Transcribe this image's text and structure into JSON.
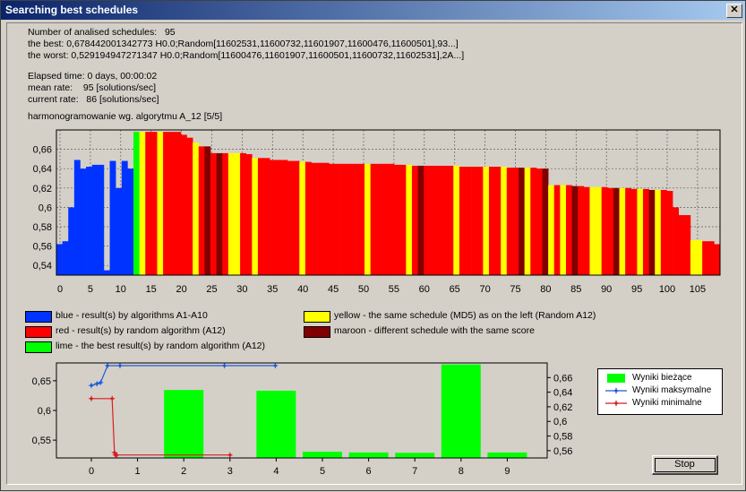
{
  "window": {
    "title": "Searching best schedules",
    "close_label": "✕"
  },
  "info": {
    "analised_label": "Number of analised schedules:",
    "analised_value": "95",
    "best": "the best: 0,678442001342773 H0.0;Random[11602531,11600732,11601907,11600476,11600501],93...]",
    "worst": "the worst: 0,529194947271347 H0.0;Random[11600476,11601907,11600501,11600732,11602531],2A...]",
    "elapsed": "Elapsed time: 0 days, 00:00:02",
    "mean_label": "mean rate:",
    "mean_value": "95 [solutions/sec]",
    "current_label": "current rate:",
    "current_value": "86 [solutions/sec]",
    "heading": "harmonogramowanie wg. algorytmu A_12 [5/5]"
  },
  "colors": {
    "blue": "#0033ff",
    "red": "#ff0000",
    "lime": "#00ff00",
    "yellow": "#ffff00",
    "maroon": "#800000"
  },
  "key": {
    "blue": "blue - result(s) by algorithms A1-A10",
    "red": "red - result(s) by random algorithm (A12)",
    "lime": "lime - the best result(s) by random algorithm (A12)",
    "yellow": "yellow - the same schedule (MD5) as on the left (Random A12)",
    "maroon": "maroon - different schedule with the same score"
  },
  "chart_data": [
    {
      "type": "bar",
      "ylim": [
        0.53,
        0.68
      ],
      "yticks": [
        "0,54",
        "0,56",
        "0,58",
        "0,6",
        "0,62",
        "0,64",
        "0,66"
      ],
      "xticks": [
        "0",
        "5",
        "10",
        "15",
        "20",
        "25",
        "30",
        "35",
        "40",
        "45",
        "50",
        "55",
        "60",
        "65",
        "70",
        "75",
        "80",
        "85",
        "90",
        "95",
        "100",
        "105"
      ],
      "grid": true,
      "values": [
        0.562,
        0.565,
        0.6,
        0.649,
        0.64,
        0.642,
        0.644,
        0.644,
        0.535,
        0.648,
        0.62,
        0.648,
        0.64,
        0.678,
        0.678,
        0.678,
        0.678,
        0.678,
        0.678,
        0.678,
        0.678,
        0.675,
        0.672,
        0.667,
        0.663,
        0.663,
        0.656,
        0.656,
        0.656,
        0.656,
        0.656,
        0.656,
        0.655,
        0.651,
        0.651,
        0.651,
        0.649,
        0.649,
        0.649,
        0.648,
        0.648,
        0.647,
        0.647,
        0.646,
        0.646,
        0.646,
        0.645,
        0.645,
        0.645,
        0.645,
        0.645,
        0.645,
        0.645,
        0.645,
        0.645,
        0.645,
        0.645,
        0.644,
        0.644,
        0.644,
        0.643,
        0.643,
        0.643,
        0.643,
        0.643,
        0.643,
        0.643,
        0.643,
        0.642,
        0.642,
        0.642,
        0.642,
        0.642,
        0.642,
        0.642,
        0.642,
        0.641,
        0.641,
        0.641,
        0.641,
        0.641,
        0.64,
        0.64,
        0.623,
        0.623,
        0.623,
        0.623,
        0.622,
        0.622,
        0.621,
        0.621,
        0.621,
        0.621,
        0.62,
        0.62,
        0.62,
        0.62,
        0.619,
        0.619,
        0.619,
        0.618,
        0.618,
        0.618,
        0.617,
        0.6,
        0.592,
        0.592,
        0.566,
        0.566,
        0.565,
        0.565,
        0.562
      ],
      "colors": [
        "blue",
        "blue",
        "blue",
        "blue",
        "blue",
        "blue",
        "blue",
        "blue",
        "blue",
        "blue",
        "blue",
        "blue",
        "blue",
        "lime",
        "yellow",
        "red",
        "red",
        "yellow",
        "red",
        "red",
        "red",
        "red",
        "red",
        "yellow",
        "red",
        "maroon",
        "red",
        "maroon",
        "red",
        "yellow",
        "yellow",
        "red",
        "red",
        "yellow",
        "red",
        "red",
        "red",
        "red",
        "red",
        "red",
        "red",
        "yellow",
        "red",
        "red",
        "red",
        "red",
        "red",
        "red",
        "red",
        "red",
        "red",
        "red",
        "yellow",
        "red",
        "red",
        "red",
        "red",
        "red",
        "red",
        "yellow",
        "red",
        "maroon",
        "red",
        "red",
        "red",
        "red",
        "red",
        "yellow",
        "red",
        "red",
        "red",
        "red",
        "yellow",
        "red",
        "red",
        "yellow",
        "red",
        "red",
        "maroon",
        "yellow",
        "red",
        "red",
        "maroon",
        "yellow",
        "red",
        "yellow",
        "red",
        "maroon",
        "red",
        "red",
        "yellow",
        "yellow",
        "red",
        "red",
        "maroon",
        "yellow",
        "red",
        "red",
        "yellow",
        "red",
        "maroon",
        "yellow",
        "red",
        "red",
        "red",
        "red",
        "red",
        "yellow",
        "yellow",
        "red",
        "red",
        "red",
        "red",
        "red"
      ]
    },
    {
      "type": "bar",
      "series": [
        {
          "name": "Wyniki bieżące",
          "categories": [
            "0",
            "1",
            "2",
            "3",
            "4",
            "5",
            "6",
            "7",
            "8",
            "9"
          ],
          "values": [
            null,
            null,
            0.643,
            null,
            0.642,
            0.5585,
            0.5575,
            0.557,
            0.678,
            0.5575
          ]
        },
        {
          "name": "Wyniki maksymalne",
          "type": "line",
          "x": [
            0,
            0.12,
            0.2,
            0.35,
            0.62,
            2.88,
            3.98
          ],
          "y": [
            0.642,
            0.645,
            0.647,
            0.678,
            0.678,
            0.678,
            0.678
          ]
        },
        {
          "name": "Wyniki minimalne",
          "type": "line",
          "x": [
            0,
            0.45,
            0.5,
            0.52,
            0.55,
            3.0
          ],
          "y": [
            0.62,
            0.62,
            0.529,
            0.525,
            0.525,
            0.525
          ]
        }
      ],
      "y_left_ticks": [
        "0,55",
        "0,6",
        "0,65"
      ],
      "y_right_ticks": [
        "0,56",
        "0,58",
        "0,6",
        "0,62",
        "0,64",
        "0,66"
      ],
      "xticks": [
        "0",
        "1",
        "2",
        "3",
        "4",
        "5",
        "6",
        "7",
        "8",
        "9"
      ],
      "legend_position": "right"
    }
  ],
  "stop_button": "Stop"
}
